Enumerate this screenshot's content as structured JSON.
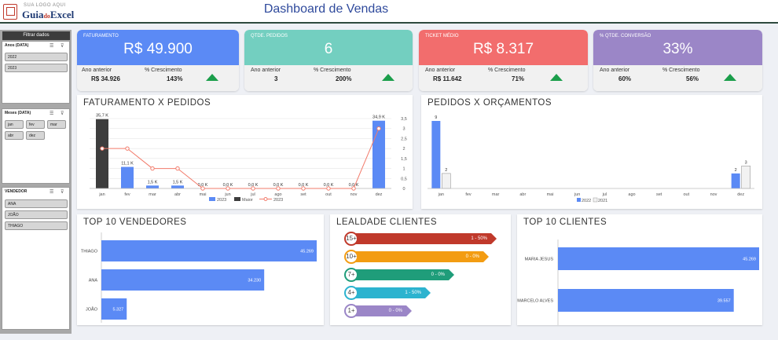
{
  "header": {
    "logo_small": "SUA LOGO AQUI",
    "logo_a": "Guia",
    "logo_b": "do",
    "logo_c": "Excel",
    "title": "Dashboard de Vendas"
  },
  "sidebar": {
    "title": "Filtrar dados",
    "anos": {
      "title": "Anos (DATA)",
      "items": [
        "2022",
        "2023"
      ]
    },
    "meses": {
      "title": "Meses (DATA)",
      "items": [
        "jan",
        "fev",
        "mar",
        "abr",
        "dez"
      ]
    },
    "vendedor": {
      "title": "VENDEDOR",
      "items": [
        "ANA",
        "JOÃO",
        "THIAGO"
      ]
    }
  },
  "kpis": [
    {
      "label": "FATURAMENTO",
      "value": "R$ 49.900",
      "prev_label": "Ano anterior",
      "prev": "R$ 34.926",
      "growth_label": "% Crescimento",
      "growth": "143%",
      "color": "#5b8af5"
    },
    {
      "label": "QTDE. PEDIDOS",
      "value": "6",
      "prev_label": "Ano anterior",
      "prev": "3",
      "growth_label": "% Crescimento",
      "growth": "200%",
      "color": "#73cfc0"
    },
    {
      "label": "TICKET MÉDIO",
      "value": "R$ 8.317",
      "prev_label": "Ano anterior",
      "prev": "R$ 11.642",
      "growth_label": "% Crescimento",
      "growth": "71%",
      "color": "#f26d6d"
    },
    {
      "label": "% QTDE. CONVERSÃO",
      "value": "33%",
      "prev_label": "Ano anterior",
      "prev": "60%",
      "growth_label": "% Crescimento",
      "growth": "56%",
      "color": "#9b86c7"
    }
  ],
  "charts": {
    "fat_title": "FATURAMENTO X PEDIDOS",
    "ped_title": "PEDIDOS X ORÇAMENTOS",
    "vend_title": "TOP 10 VENDEDORES",
    "loy_title": "LEALDADE CLIENTES",
    "cli_title": "TOP 10 CLIENTES"
  },
  "chart_data": [
    {
      "type": "bar",
      "categories": [
        "jan",
        "fev",
        "mar",
        "abr",
        "mai",
        "jun",
        "jul",
        "ago",
        "set",
        "out",
        "nov",
        "dez"
      ],
      "series": [
        {
          "name": "2023",
          "values": [
            35.7,
            11.1,
            1.5,
            1.5,
            0,
            0,
            0,
            0,
            0,
            0,
            0,
            34.9
          ]
        },
        {
          "name": "Maior",
          "values": [
            35.7,
            null,
            null,
            null,
            null,
            null,
            null,
            null,
            null,
            null,
            null,
            null
          ]
        },
        {
          "name": "2023",
          "type": "line",
          "axis": "right",
          "values": [
            2,
            2,
            1,
            1,
            0,
            0,
            0,
            0,
            0,
            0,
            0,
            3
          ]
        }
      ],
      "labels": [
        "35,7 K",
        "11,1 K",
        "1,5 K",
        "1,5 K",
        "0,0 K",
        "0,0 K",
        "0,0 K",
        "0,0 K",
        "0,0 K",
        "0,0 K",
        "0,0 K",
        "34,9 K"
      ],
      "y2ticks": [
        "0",
        "0,5",
        "1",
        "1,5",
        "2",
        "2,5",
        "3",
        "3,5"
      ],
      "y2lim": [
        0,
        3.5
      ]
    },
    {
      "type": "bar",
      "categories": [
        "jan",
        "fev",
        "mar",
        "abr",
        "mai",
        "jun",
        "jul",
        "ago",
        "set",
        "out",
        "nov",
        "dez"
      ],
      "series": [
        {
          "name": "2022",
          "values": [
            9,
            0,
            0,
            0,
            0,
            0,
            0,
            0,
            0,
            0,
            0,
            2
          ]
        },
        {
          "name": "2021",
          "values": [
            2,
            0,
            0,
            0,
            0,
            0,
            0,
            0,
            0,
            0,
            0,
            3
          ]
        }
      ]
    },
    {
      "type": "bar",
      "orientation": "horizontal",
      "categories": [
        "THIAGO",
        "ANA",
        "JOÃO"
      ],
      "values": [
        45269,
        34230,
        5327
      ],
      "labels": [
        "45.269",
        "34.230",
        "5.327"
      ]
    },
    {
      "type": "bar",
      "orientation": "horizontal",
      "categories": [
        "MARIA JESUS",
        "MARCELO ALVES"
      ],
      "values": [
        45269,
        39557
      ],
      "labels": [
        "45.269",
        "39.557"
      ]
    }
  ],
  "loyalty": [
    {
      "tag": "15+",
      "text": "1 - 50%",
      "color": "#c0392b"
    },
    {
      "tag": "10+",
      "text": "0 - 0%",
      "color": "#f39c12"
    },
    {
      "tag": "7+",
      "text": "0 - 0%",
      "color": "#1f9d7a"
    },
    {
      "tag": "4+",
      "text": "1 - 50%",
      "color": "#2cb3cf"
    },
    {
      "tag": "1+",
      "text": "0 - 0%",
      "color": "#9b86c7"
    }
  ],
  "legends": {
    "fat": [
      "2023",
      "Maior",
      "2023"
    ],
    "ped": [
      "2022",
      "2021"
    ]
  },
  "colors": {
    "blue": "#5b8af5",
    "dark": "#3d3d3d",
    "red_line": "#f27b6b",
    "green": "#1b9e4b"
  }
}
